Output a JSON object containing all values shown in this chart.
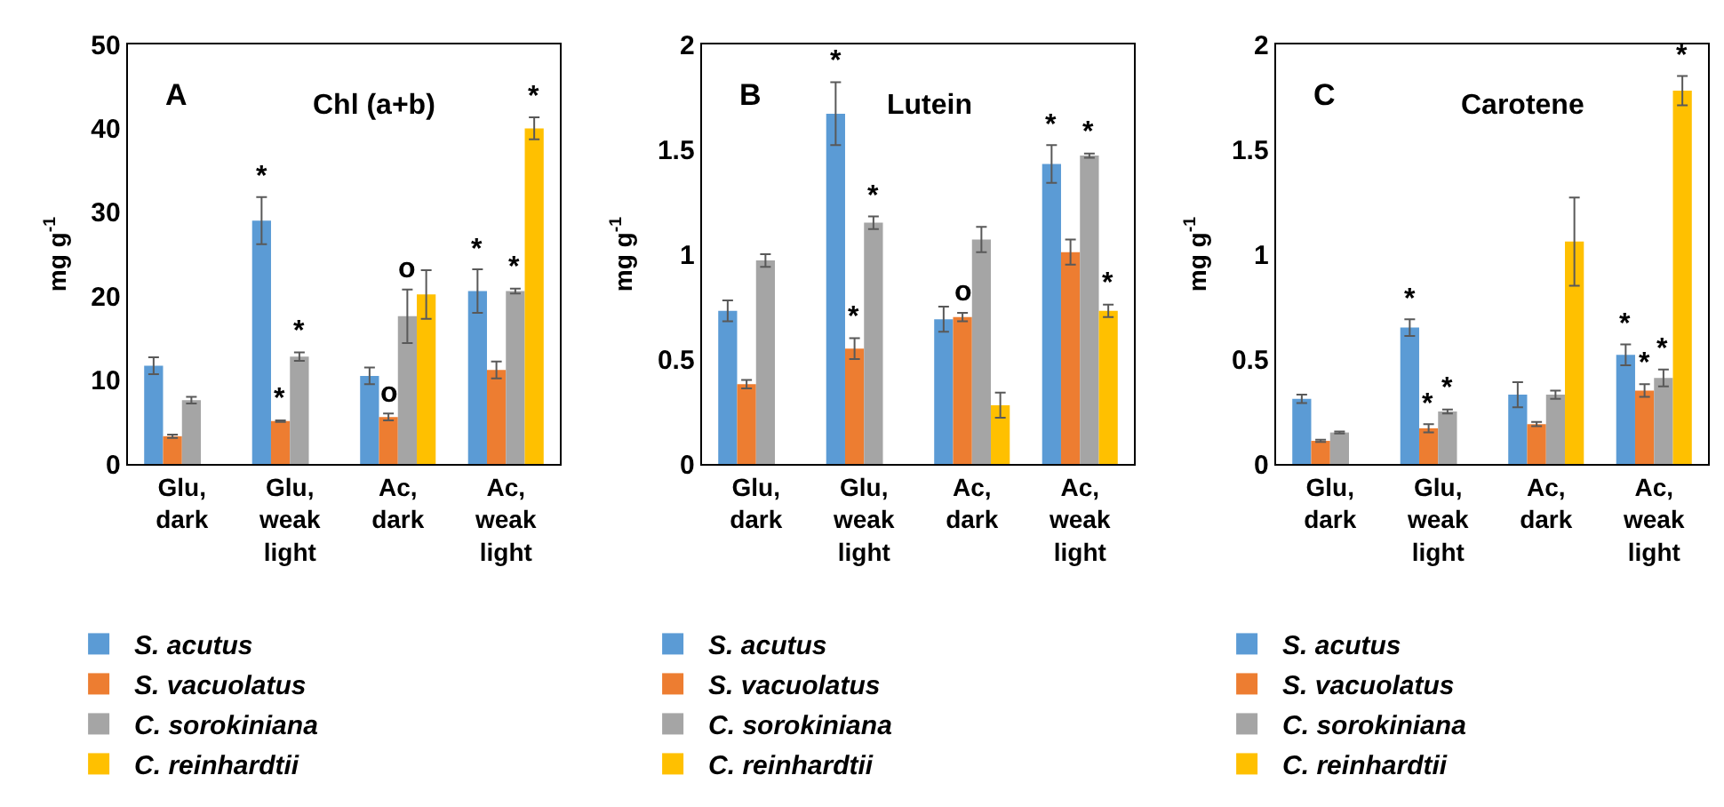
{
  "chart_data": [
    {
      "type": "bar",
      "categories": [
        "Glu, dark",
        "Glu, weak light",
        "Ac, dark",
        "Ac, weak light"
      ],
      "ylabel": "mg g$^{-1}$",
      "ylim": [
        0,
        50
      ],
      "yticks": [
        0,
        10,
        20,
        30,
        40,
        50
      ],
      "legend": "bottom",
      "annotations": [
        "A",
        "Chl (a+b)"
      ],
      "series": [
        {
          "name": "S. acutus",
          "color": "#5b9bd5",
          "values": [
            11.7,
            29,
            10.5,
            20.6
          ],
          "errors": [
            1,
            2.8,
            1,
            2.6
          ],
          "value_labels": [
            null,
            "*",
            null,
            "*"
          ]
        },
        {
          "name": "S. vacuolatus",
          "color": "#ed7d31",
          "values": [
            3.3,
            5.1,
            5.6,
            11.2
          ],
          "errors": [
            0.2,
            0.1,
            0.4,
            1
          ],
          "value_labels": [
            null,
            "*",
            "o",
            null
          ]
        },
        {
          "name": "C. sorokiniana",
          "color": "#a5a5a5",
          "values": [
            7.6,
            12.8,
            17.6,
            20.6
          ],
          "errors": [
            0.4,
            0.5,
            3.2,
            0.3
          ],
          "value_labels": [
            null,
            "*",
            "o",
            "*"
          ]
        },
        {
          "name": "C. reinhardtii",
          "color": "#ffc000",
          "values": [
            null,
            null,
            20.2,
            40
          ],
          "errors": [
            null,
            null,
            2.9,
            1.3
          ],
          "value_labels": [
            null,
            null,
            null,
            "*"
          ]
        }
      ]
    },
    {
      "type": "bar",
      "categories": [
        "Glu, dark",
        "Glu, weak light",
        "Ac, dark",
        "Ac, weak light"
      ],
      "ylabel": "mg g$^{-1}$",
      "ylim": [
        0,
        2
      ],
      "yticks": [
        0,
        0.5,
        1,
        1.5,
        2
      ],
      "legend": "bottom",
      "annotations": [
        "B",
        "Lutein"
      ],
      "series": [
        {
          "name": "S. acutus",
          "color": "#5b9bd5",
          "values": [
            0.73,
            1.67,
            0.69,
            1.43
          ],
          "errors": [
            0.05,
            0.15,
            0.06,
            0.09
          ],
          "value_labels": [
            null,
            "*",
            null,
            "*"
          ]
        },
        {
          "name": "S. vacuolatus",
          "color": "#ed7d31",
          "values": [
            0.38,
            0.55,
            0.7,
            1.01
          ],
          "errors": [
            0.02,
            0.05,
            0.02,
            0.06
          ],
          "value_labels": [
            null,
            "*",
            "o",
            null
          ]
        },
        {
          "name": "C. sorokiniana",
          "color": "#a5a5a5",
          "values": [
            0.97,
            1.15,
            1.07,
            1.47
          ],
          "errors": [
            0.03,
            0.03,
            0.06,
            0.01
          ],
          "value_labels": [
            null,
            "*",
            null,
            "*"
          ]
        },
        {
          "name": "C. reinhardtii",
          "color": "#ffc000",
          "values": [
            null,
            null,
            0.28,
            0.73
          ],
          "errors": [
            null,
            null,
            0.06,
            0.03
          ],
          "value_labels": [
            null,
            null,
            null,
            "*"
          ]
        }
      ]
    },
    {
      "type": "bar",
      "categories": [
        "Glu, dark",
        "Glu, weak light",
        "Ac, dark",
        "Ac, weak light"
      ],
      "ylabel": "mg g$^{-1}$",
      "ylim": [
        0,
        2
      ],
      "yticks": [
        0,
        0.5,
        1,
        1.5,
        2
      ],
      "legend": "bottom",
      "annotations": [
        "C",
        "Carotene"
      ],
      "series": [
        {
          "name": "S. acutus",
          "color": "#5b9bd5",
          "values": [
            0.31,
            0.65,
            0.33,
            0.52
          ],
          "errors": [
            0.02,
            0.04,
            0.06,
            0.05
          ],
          "value_labels": [
            null,
            "*",
            null,
            "*"
          ]
        },
        {
          "name": "S. vacuolatus",
          "color": "#ed7d31",
          "values": [
            0.11,
            0.17,
            0.19,
            0.35
          ],
          "errors": [
            0.005,
            0.02,
            0.01,
            0.03
          ],
          "value_labels": [
            null,
            "*",
            null,
            "*"
          ]
        },
        {
          "name": "C. sorokiniana",
          "color": "#a5a5a5",
          "values": [
            0.15,
            0.25,
            0.33,
            0.41
          ],
          "errors": [
            0.005,
            0.01,
            0.02,
            0.04
          ],
          "value_labels": [
            null,
            "*",
            null,
            "*"
          ]
        },
        {
          "name": "C. reinhardtii",
          "color": "#ffc000",
          "values": [
            null,
            null,
            1.06,
            1.78
          ],
          "errors": [
            null,
            null,
            0.21,
            0.07
          ],
          "value_labels": [
            null,
            null,
            null,
            "*"
          ]
        }
      ]
    }
  ]
}
